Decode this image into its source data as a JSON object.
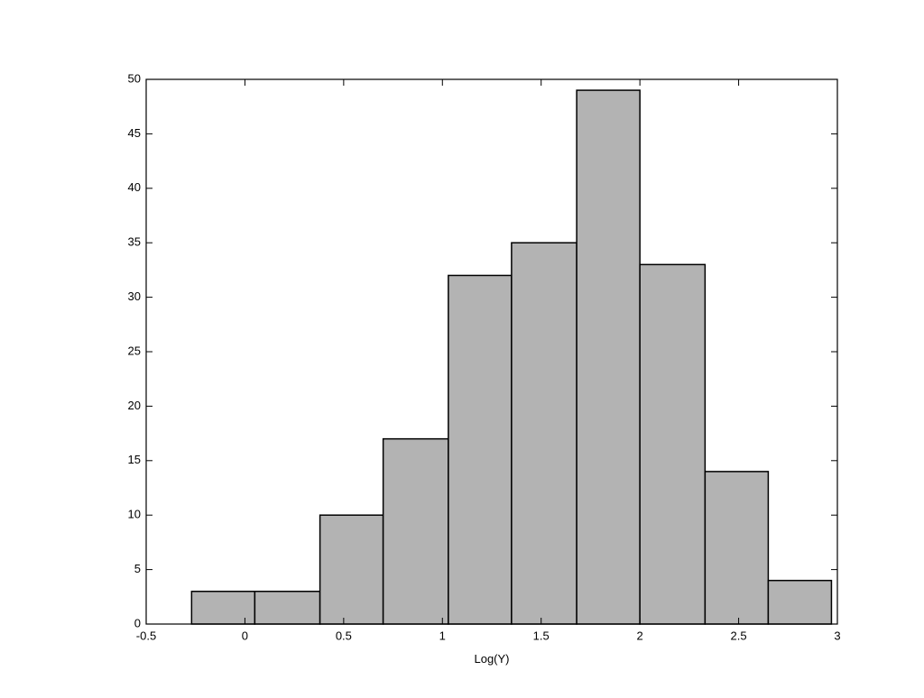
{
  "chart_data": {
    "type": "histogram",
    "xlabel": "Log(Y)",
    "bins": [
      -0.27,
      0.05,
      0.38,
      0.7,
      1.03,
      1.35,
      1.68,
      2.0,
      2.33,
      2.65,
      2.97
    ],
    "values": [
      3,
      3,
      10,
      17,
      32,
      35,
      49,
      33,
      14,
      4
    ],
    "color": "#b3b3b3",
    "xlim": [
      -0.5,
      3
    ],
    "xticks": [
      -0.5,
      0,
      0.5,
      1,
      1.5,
      2,
      2.5,
      3
    ],
    "ylim": [
      0,
      50
    ],
    "yticks": [
      0,
      5,
      10,
      15,
      20,
      25,
      30,
      35,
      40,
      45,
      50
    ]
  }
}
